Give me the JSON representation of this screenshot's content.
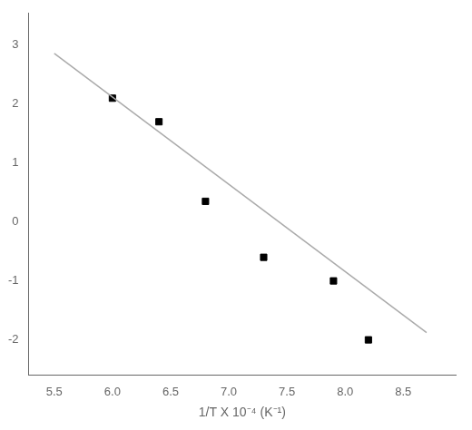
{
  "chart_data": {
    "type": "scatter",
    "x_label": "1/T X 10⁻⁴ (K⁻¹)",
    "xlim": [
      5.28,
      8.95
    ],
    "xticks": [
      {
        "value": 5.5,
        "label": "5.5"
      },
      {
        "value": 6.0,
        "label": "6.0"
      },
      6.5,
      {
        "value": 7.0,
        "label": "7.0"
      },
      7.5,
      {
        "value": 8.0,
        "label": "8.0"
      },
      8.5
    ],
    "ylim": [
      -2.6,
      3.55
    ],
    "yticks": [
      -2,
      -1,
      0,
      1,
      2,
      3
    ],
    "grid": false,
    "legend": false,
    "series": [
      {
        "type": "line",
        "color": "#aaaaaa",
        "x": [
          5.5,
          8.7
        ],
        "values": [
          2.86,
          -1.876
        ]
      },
      {
        "type": "scatter",
        "color": "#000000",
        "marker": "square",
        "x": [
          6.0,
          6.4,
          6.8,
          7.3,
          7.9,
          8.2
        ],
        "values": [
          2.1,
          1.7,
          0.35,
          -0.6,
          -1.0,
          -2.0
        ]
      }
    ]
  }
}
